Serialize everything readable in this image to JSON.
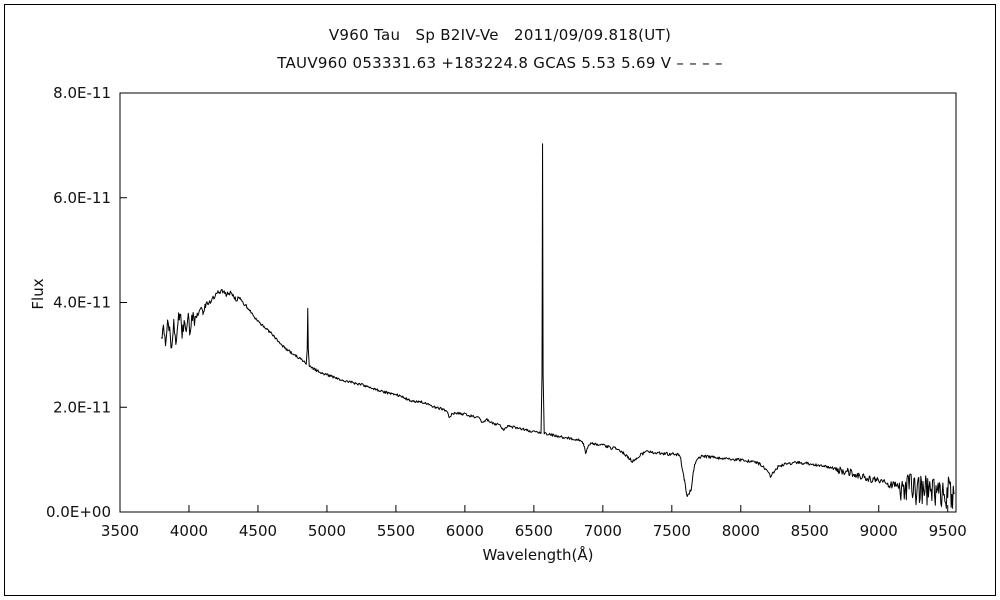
{
  "chart_data": {
    "type": "line",
    "title": "V960 Tau   Sp B2IV-Ve   2011/09/09.818(UT)",
    "subtitle": "TAUV960 053331.63 +183224.8 GCAS 5.53 5.69 V – – – –",
    "xlabel": "Wavelength(Å)",
    "ylabel": "Flux",
    "xlim": [
      3500,
      9560
    ],
    "ylim": [
      0,
      8
    ],
    "y_unit_factor": "1e-11",
    "xticks": [
      3500,
      4000,
      4500,
      5000,
      5500,
      6000,
      6500,
      7000,
      7500,
      8000,
      8500,
      9000,
      9500
    ],
    "xtick_labels": [
      "3500",
      "4000",
      "4500",
      "5000",
      "5500",
      "6000",
      "6500",
      "7000",
      "7500",
      "8000",
      "8500",
      "9000",
      "9500"
    ],
    "ytick_values": [
      0,
      2,
      4,
      6,
      8
    ],
    "ytick_labels": [
      "0.0E+00",
      "2.0E-11",
      "4.0E-11",
      "6.0E-11",
      "8.0E-11"
    ],
    "line_color": "#000000",
    "axis_color": "#000000",
    "text_color": "#111111",
    "grid": false,
    "legend": false,
    "sample_step": 5,
    "noise_regions": [
      {
        "from": 3800,
        "to": 4055,
        "amp": 0.3
      },
      {
        "from": 4055,
        "to": 4420,
        "amp": 0.1
      },
      {
        "from": 4420,
        "to": 7000,
        "amp": 0.05
      },
      {
        "from": 7000,
        "to": 8700,
        "amp": 0.06
      },
      {
        "from": 8700,
        "to": 9150,
        "amp": 0.14
      },
      {
        "from": 9150,
        "to": 9560,
        "amp": 0.6
      }
    ],
    "features": [
      {
        "name": "H-beta emission",
        "wavelength": 4861,
        "peak_flux_1e11": 3.88
      },
      {
        "name": "H-alpha emission",
        "wavelength": 6563,
        "peak_flux_1e11": 7.05
      },
      {
        "name": "telluric B-band absorption",
        "wavelength": 6870
      },
      {
        "name": "telluric A-band absorption",
        "wavelength": 7610,
        "min_flux_1e11": 0.28
      },
      {
        "name": "absorption dip",
        "wavelength": 8215
      }
    ],
    "anchors": [
      [
        3800,
        3.3
      ],
      [
        3815,
        3.62
      ],
      [
        3830,
        3.28
      ],
      [
        3845,
        3.68
      ],
      [
        3860,
        3.4
      ],
      [
        3875,
        3.18
      ],
      [
        3890,
        3.55
      ],
      [
        3905,
        3.3
      ],
      [
        3920,
        3.66
      ],
      [
        3935,
        3.76
      ],
      [
        3950,
        3.42
      ],
      [
        3965,
        3.6
      ],
      [
        3980,
        3.5
      ],
      [
        3995,
        3.7
      ],
      [
        4010,
        3.42
      ],
      [
        4025,
        3.72
      ],
      [
        4040,
        3.64
      ],
      [
        4060,
        3.78
      ],
      [
        4090,
        3.88
      ],
      [
        4101,
        3.8
      ],
      [
        4120,
        3.95
      ],
      [
        4150,
        4.02
      ],
      [
        4180,
        4.1
      ],
      [
        4210,
        4.18
      ],
      [
        4240,
        4.22
      ],
      [
        4270,
        4.15
      ],
      [
        4300,
        4.18
      ],
      [
        4330,
        4.1
      ],
      [
        4340,
        4.02
      ],
      [
        4360,
        4.1
      ],
      [
        4400,
        3.96
      ],
      [
        4440,
        3.85
      ],
      [
        4480,
        3.7
      ],
      [
        4520,
        3.6
      ],
      [
        4560,
        3.5
      ],
      [
        4600,
        3.4
      ],
      [
        4650,
        3.25
      ],
      [
        4700,
        3.12
      ],
      [
        4750,
        3.02
      ],
      [
        4800,
        2.94
      ],
      [
        4830,
        2.88
      ],
      [
        4850,
        2.84
      ],
      [
        4857,
        3.1
      ],
      [
        4861,
        3.88
      ],
      [
        4865,
        3.1
      ],
      [
        4872,
        2.8
      ],
      [
        4900,
        2.74
      ],
      [
        4950,
        2.67
      ],
      [
        5000,
        2.62
      ],
      [
        5050,
        2.57
      ],
      [
        5100,
        2.52
      ],
      [
        5150,
        2.5
      ],
      [
        5200,
        2.46
      ],
      [
        5250,
        2.43
      ],
      [
        5300,
        2.39
      ],
      [
        5350,
        2.34
      ],
      [
        5400,
        2.3
      ],
      [
        5450,
        2.27
      ],
      [
        5500,
        2.25
      ],
      [
        5550,
        2.19
      ],
      [
        5600,
        2.13
      ],
      [
        5650,
        2.11
      ],
      [
        5700,
        2.09
      ],
      [
        5750,
        2.03
      ],
      [
        5800,
        1.99
      ],
      [
        5850,
        1.96
      ],
      [
        5875,
        1.9
      ],
      [
        5890,
        1.79
      ],
      [
        5905,
        1.88
      ],
      [
        5950,
        1.88
      ],
      [
        6000,
        1.87
      ],
      [
        6050,
        1.83
      ],
      [
        6100,
        1.79
      ],
      [
        6130,
        1.7
      ],
      [
        6160,
        1.76
      ],
      [
        6200,
        1.7
      ],
      [
        6250,
        1.66
      ],
      [
        6280,
        1.58
      ],
      [
        6310,
        1.64
      ],
      [
        6350,
        1.62
      ],
      [
        6400,
        1.59
      ],
      [
        6450,
        1.56
      ],
      [
        6490,
        1.53
      ],
      [
        6530,
        1.51
      ],
      [
        6552,
        1.52
      ],
      [
        6559,
        2.6
      ],
      [
        6563,
        7.05
      ],
      [
        6567,
        2.6
      ],
      [
        6575,
        1.5
      ],
      [
        6600,
        1.49
      ],
      [
        6650,
        1.46
      ],
      [
        6700,
        1.43
      ],
      [
        6750,
        1.41
      ],
      [
        6800,
        1.39
      ],
      [
        6845,
        1.36
      ],
      [
        6862,
        1.28
      ],
      [
        6875,
        1.13
      ],
      [
        6893,
        1.27
      ],
      [
        6910,
        1.31
      ],
      [
        6950,
        1.29
      ],
      [
        7000,
        1.27
      ],
      [
        7050,
        1.23
      ],
      [
        7100,
        1.21
      ],
      [
        7150,
        1.13
      ],
      [
        7185,
        1.04
      ],
      [
        7215,
        0.97
      ],
      [
        7245,
        1.03
      ],
      [
        7275,
        1.1
      ],
      [
        7320,
        1.15
      ],
      [
        7370,
        1.13
      ],
      [
        7420,
        1.12
      ],
      [
        7470,
        1.11
      ],
      [
        7520,
        1.1
      ],
      [
        7560,
        1.08
      ],
      [
        7592,
        0.6
      ],
      [
        7612,
        0.28
      ],
      [
        7640,
        0.44
      ],
      [
        7665,
        0.92
      ],
      [
        7690,
        1.04
      ],
      [
        7720,
        1.06
      ],
      [
        7770,
        1.05
      ],
      [
        7820,
        1.04
      ],
      [
        7870,
        1.02
      ],
      [
        7920,
        1.01
      ],
      [
        7970,
        1.0
      ],
      [
        8020,
        0.99
      ],
      [
        8070,
        0.97
      ],
      [
        8120,
        0.94
      ],
      [
        8160,
        0.88
      ],
      [
        8185,
        0.79
      ],
      [
        8215,
        0.68
      ],
      [
        8245,
        0.79
      ],
      [
        8275,
        0.88
      ],
      [
        8320,
        0.91
      ],
      [
        8370,
        0.93
      ],
      [
        8420,
        0.94
      ],
      [
        8470,
        0.93
      ],
      [
        8520,
        0.91
      ],
      [
        8570,
        0.89
      ],
      [
        8620,
        0.86
      ],
      [
        8670,
        0.83
      ],
      [
        8720,
        0.8
      ],
      [
        8770,
        0.77
      ],
      [
        8820,
        0.73
      ],
      [
        8870,
        0.69
      ],
      [
        8920,
        0.65
      ],
      [
        8970,
        0.61
      ],
      [
        9020,
        0.57
      ],
      [
        9070,
        0.53
      ],
      [
        9120,
        0.51
      ],
      [
        9170,
        0.48
      ],
      [
        9220,
        0.46
      ],
      [
        9270,
        0.43
      ],
      [
        9320,
        0.41
      ],
      [
        9370,
        0.38
      ],
      [
        9420,
        0.36
      ],
      [
        9470,
        0.32
      ],
      [
        9510,
        0.4
      ],
      [
        9530,
        0.15
      ],
      [
        9550,
        0.35
      ]
    ]
  }
}
